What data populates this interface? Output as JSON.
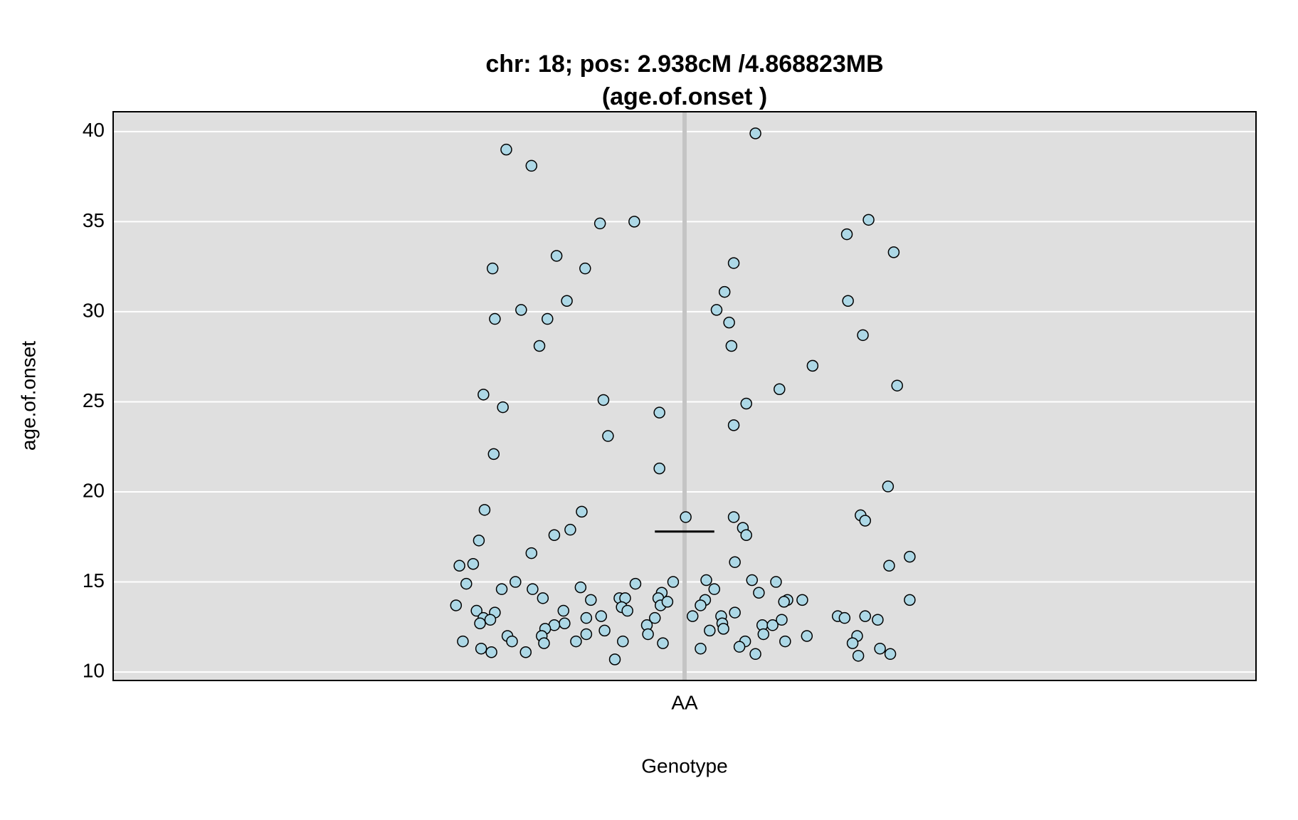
{
  "chart_data": {
    "type": "scatter",
    "title": [
      "chr: 18; pos: 2.938cM /4.868823MB",
      "(age.of.onset )"
    ],
    "x_label": "Genotype",
    "y_label": "age.of.onset",
    "color": "#add8e6",
    "grid": true,
    "xlim": [
      0.5,
      1.5
    ],
    "xticks": [
      {
        "value": 1,
        "label": "AA"
      }
    ],
    "ylim": [
      9.53,
      41.1
    ],
    "yticks": [
      10,
      15,
      20,
      25,
      30,
      35,
      40
    ],
    "mean": 17.8,
    "x": [
      0.844,
      0.866,
      1.062,
      0.926,
      0.956,
      1.161,
      1.142,
      1.183,
      0.888,
      0.832,
      0.913,
      1.043,
      1.035,
      0.897,
      1.143,
      0.857,
      1.028,
      0.834,
      0.88,
      1.039,
      1.156,
      0.873,
      1.041,
      1.112,
      1.083,
      1.186,
      0.824,
      0.929,
      0.841,
      1.054,
      0.978,
      1.043,
      0.933,
      0.833,
      0.978,
      1.178,
      0.825,
      0.91,
      1.001,
      1.043,
      1.154,
      1.158,
      1.051,
      0.9,
      1.054,
      0.886,
      0.82,
      0.866,
      1.197,
      1.044,
      0.803,
      0.815,
      1.179,
      0.809,
      0.852,
      0.957,
      0.99,
      1.019,
      1.059,
      1.08,
      0.84,
      0.867,
      0.909,
      1.026,
      1.065,
      0.98,
      0.876,
      0.918,
      0.943,
      0.948,
      0.977,
      1.018,
      1.09,
      1.103,
      1.197,
      0.8,
      0.945,
      0.979,
      0.985,
      1.014,
      1.087,
      0.818,
      0.834,
      0.894,
      0.95,
      1.044,
      0.824,
      0.914,
      0.927,
      0.974,
      1.007,
      1.032,
      1.134,
      1.14,
      1.158,
      0.83,
      1.085,
      1.169,
      0.821,
      0.895,
      0.886,
      0.967,
      1.033,
      1.068,
      1.077,
      0.878,
      0.93,
      1.022,
      1.034,
      0.914,
      0.968,
      1.069,
      0.845,
      0.875,
      1.107,
      1.151,
      0.806,
      0.849,
      0.905,
      0.946,
      1.088,
      1.053,
      0.877,
      0.981,
      1.147,
      1.048,
      0.822,
      1.014,
      1.171,
      0.831,
      0.861,
      1.062,
      1.18,
      1.152,
      0.939
    ],
    "values": [
      39.0,
      38.1,
      39.9,
      34.9,
      35.0,
      35.1,
      34.3,
      33.3,
      33.1,
      32.4,
      32.4,
      32.7,
      31.1,
      30.6,
      30.6,
      30.1,
      30.1,
      29.6,
      29.6,
      29.4,
      28.7,
      28.1,
      28.1,
      27.0,
      25.7,
      25.9,
      25.4,
      25.1,
      24.7,
      24.9,
      24.4,
      23.7,
      23.1,
      22.1,
      21.3,
      20.3,
      19.0,
      18.9,
      18.6,
      18.6,
      18.7,
      18.4,
      18.0,
      17.9,
      17.6,
      17.6,
      17.3,
      16.6,
      16.4,
      16.1,
      15.9,
      16.0,
      15.9,
      14.9,
      15.0,
      14.9,
      15.0,
      15.1,
      15.1,
      15.0,
      14.6,
      14.6,
      14.7,
      14.6,
      14.4,
      14.4,
      14.1,
      14.0,
      14.1,
      14.1,
      14.1,
      14.0,
      14.0,
      14.0,
      14.0,
      13.7,
      13.6,
      13.7,
      13.9,
      13.7,
      13.9,
      13.4,
      13.3,
      13.4,
      13.4,
      13.3,
      13.0,
      13.0,
      13.1,
      13.0,
      13.1,
      13.1,
      13.1,
      13.0,
      13.1,
      12.9,
      12.9,
      12.9,
      12.7,
      12.7,
      12.6,
      12.6,
      12.7,
      12.6,
      12.6,
      12.4,
      12.3,
      12.3,
      12.4,
      12.1,
      12.1,
      12.1,
      12.0,
      12.0,
      12.0,
      12.0,
      11.7,
      11.7,
      11.7,
      11.7,
      11.7,
      11.7,
      11.6,
      11.6,
      11.6,
      11.4,
      11.3,
      11.3,
      11.3,
      11.1,
      11.1,
      11.0,
      11.0,
      10.9,
      10.7
    ]
  }
}
